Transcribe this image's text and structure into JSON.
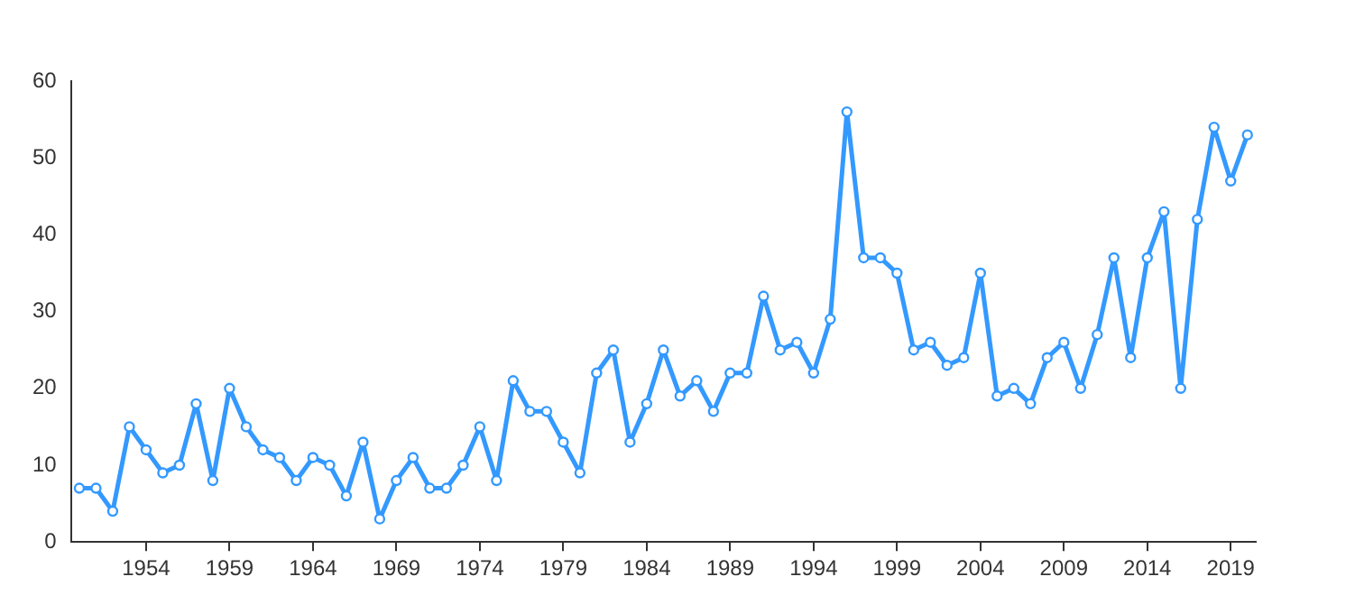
{
  "chart_data": {
    "type": "line",
    "x": [
      1950,
      1951,
      1952,
      1953,
      1954,
      1955,
      1956,
      1957,
      1958,
      1959,
      1960,
      1961,
      1962,
      1963,
      1964,
      1965,
      1966,
      1967,
      1968,
      1969,
      1970,
      1971,
      1972,
      1973,
      1974,
      1975,
      1976,
      1977,
      1978,
      1979,
      1980,
      1981,
      1982,
      1983,
      1984,
      1985,
      1986,
      1987,
      1988,
      1989,
      1990,
      1991,
      1992,
      1993,
      1994,
      1995,
      1996,
      1997,
      1998,
      1999,
      2000,
      2001,
      2002,
      2003,
      2004,
      2005,
      2006,
      2007,
      2008,
      2009,
      2010,
      2011,
      2012,
      2013,
      2014,
      2015,
      2016,
      2017,
      2018,
      2019,
      2020
    ],
    "series": [
      {
        "color": "#3399ff",
        "values": [
          7,
          7,
          4,
          15,
          12,
          9,
          10,
          18,
          8,
          20,
          15,
          12,
          11,
          8,
          11,
          10,
          6,
          13,
          3,
          8,
          11,
          7,
          7,
          10,
          15,
          8,
          21,
          17,
          17,
          13,
          9,
          22,
          25,
          13,
          18,
          25,
          19,
          21,
          17,
          22,
          22,
          32,
          25,
          26,
          22,
          29,
          56,
          37,
          37,
          35,
          25,
          26,
          23,
          24,
          35,
          19,
          20,
          18,
          24,
          26,
          20,
          27,
          37,
          24,
          37,
          43,
          20,
          42,
          54,
          47,
          53
        ]
      }
    ],
    "xlim": [
      1949.5,
      2020.5
    ],
    "xticks": [
      1954,
      1959,
      1964,
      1969,
      1974,
      1979,
      1984,
      1989,
      1994,
      1999,
      2004,
      2009,
      2014,
      2019
    ],
    "ylim": [
      0,
      60
    ],
    "yticks": [
      0,
      10,
      20,
      30,
      40,
      50,
      60
    ],
    "grid": false,
    "legend": false,
    "marker": "circle",
    "line_style": "solid"
  }
}
